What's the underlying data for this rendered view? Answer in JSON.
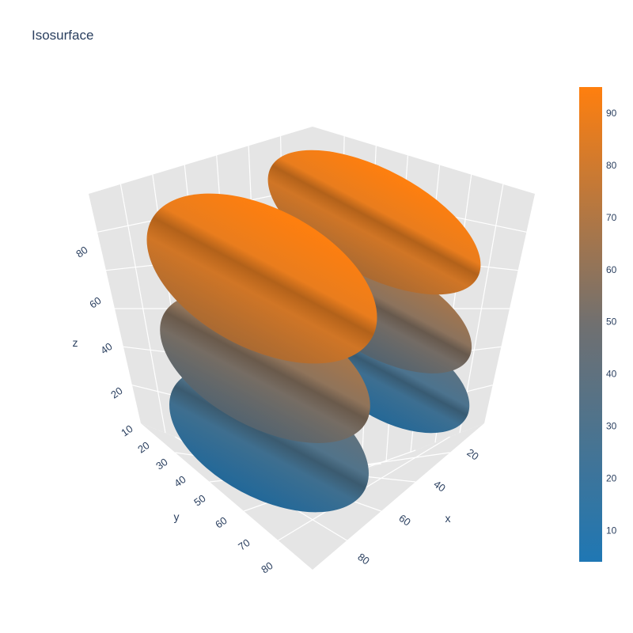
{
  "chart_data": {
    "type": "isosurface",
    "title": "Isosurface",
    "axes": {
      "x": {
        "label": "x",
        "ticks": [
          20,
          40,
          60,
          80
        ]
      },
      "y": {
        "label": "y",
        "ticks": [
          10,
          20,
          30,
          40,
          50,
          60,
          70,
          80
        ]
      },
      "z": {
        "label": "z",
        "ticks": [
          20,
          40,
          60,
          80
        ]
      }
    },
    "colorscale": {
      "low_color": "#1f77b4",
      "high_color": "#ff7f0e",
      "range": [
        4,
        95
      ],
      "ticks": [
        10,
        20,
        30,
        40,
        50,
        60,
        70,
        80,
        90
      ]
    },
    "scene": {
      "background": "#e5e5e5",
      "grid": true,
      "grid_color": "#ffffff"
    },
    "surfaces": [
      {
        "column": "front",
        "level": "bottom",
        "value_top": 45,
        "value_bottom": 8
      },
      {
        "column": "front",
        "level": "middle",
        "value_top": 70,
        "value_bottom": 40
      },
      {
        "column": "front",
        "level": "top",
        "value_top": 95,
        "value_bottom": 75
      },
      {
        "column": "back",
        "level": "bottom",
        "value_top": 40,
        "value_bottom": 10
      },
      {
        "column": "back",
        "level": "middle",
        "value_top": 68,
        "value_bottom": 40
      },
      {
        "column": "back",
        "level": "top",
        "value_top": 95,
        "value_bottom": 75
      }
    ]
  }
}
